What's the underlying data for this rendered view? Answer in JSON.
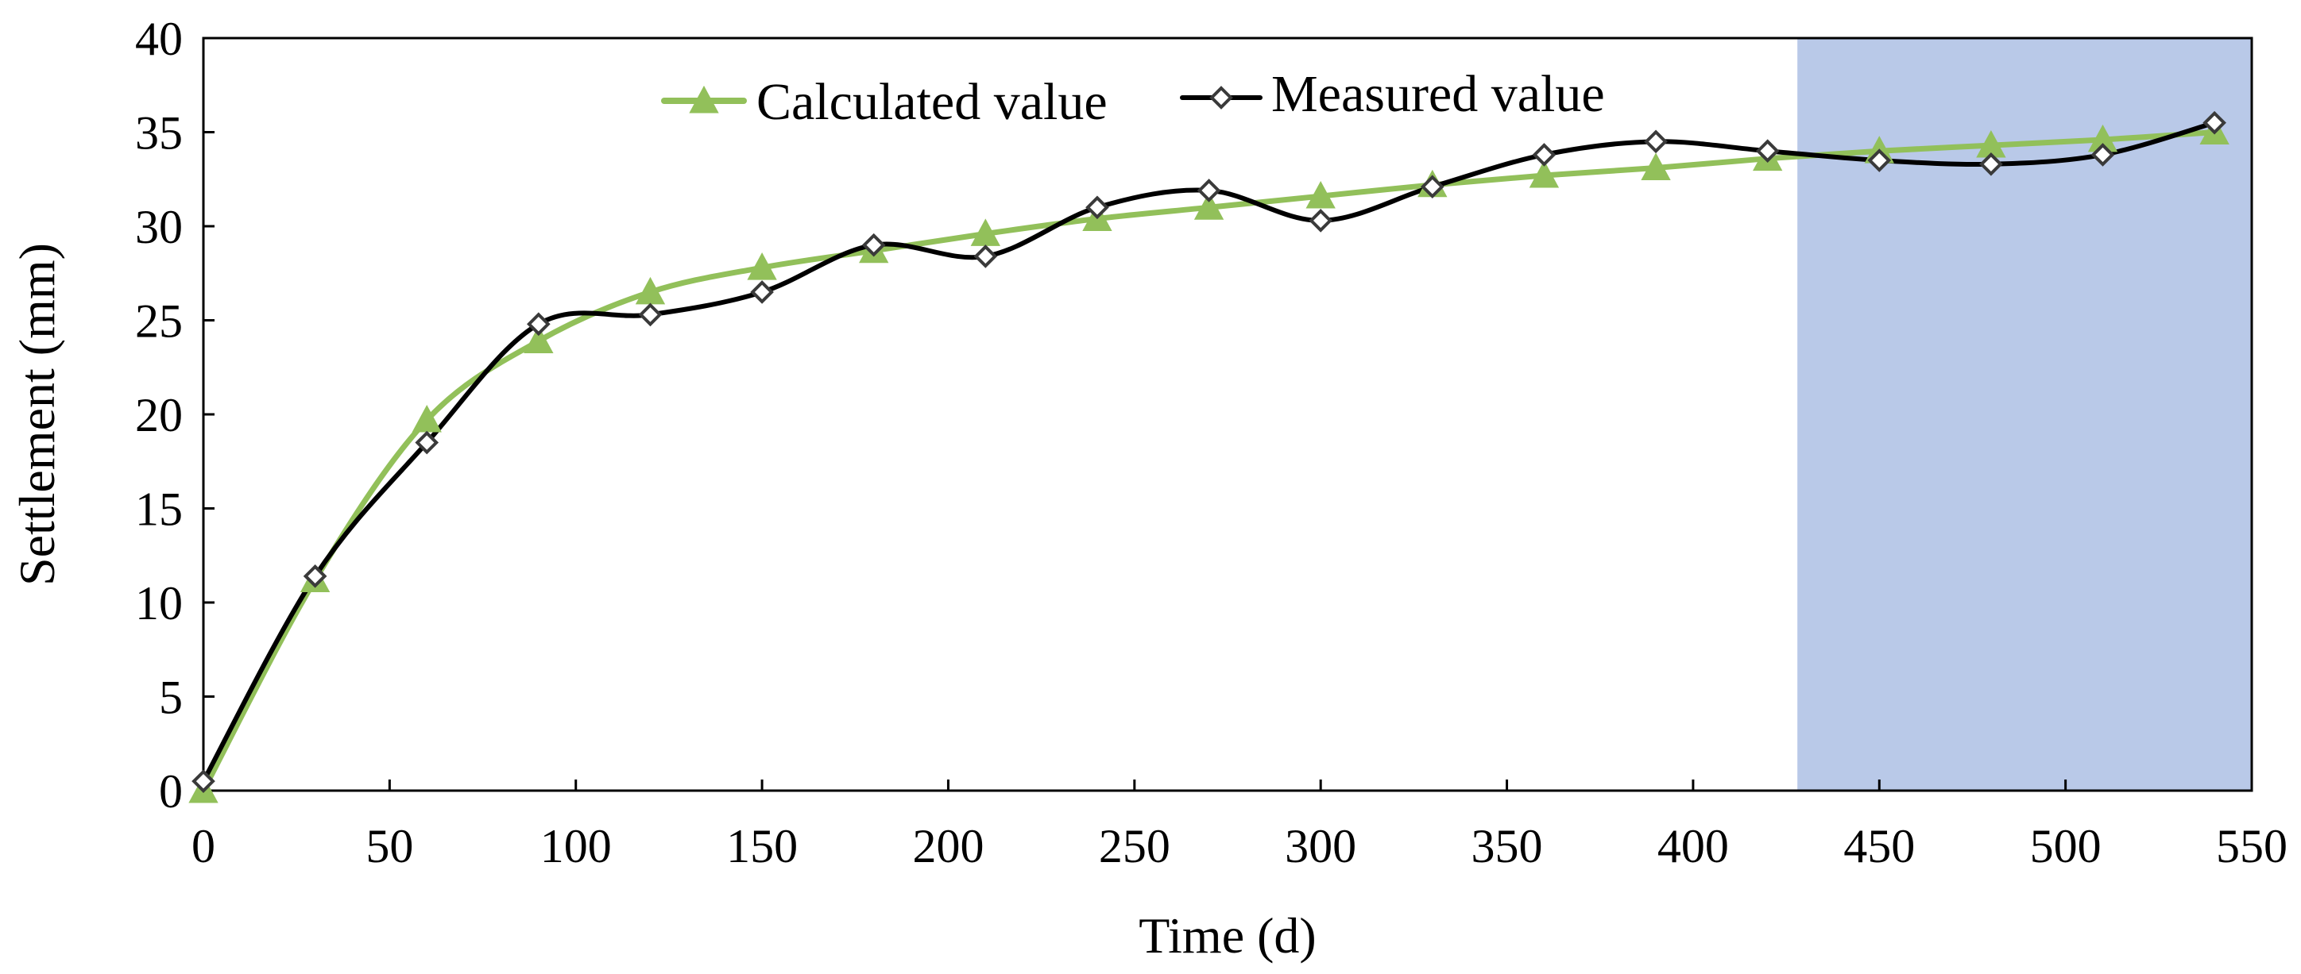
{
  "chart_data": {
    "type": "line",
    "title": "",
    "xlabel": "Time (d)",
    "ylabel": "Settlement (mm)",
    "xlim": [
      0,
      550
    ],
    "ylim": [
      0,
      40
    ],
    "xticks": [
      0,
      50,
      100,
      150,
      200,
      250,
      300,
      350,
      400,
      450,
      500,
      550
    ],
    "yticks": [
      0,
      5,
      10,
      15,
      20,
      25,
      30,
      35,
      40
    ],
    "grid": false,
    "legend_position": "top-center",
    "highlight_region": {
      "x_start": 428,
      "x_end": 550,
      "color": "#b9c9e8"
    },
    "series": [
      {
        "name": "Calculated value",
        "color": "#92c05a",
        "marker": "triangle",
        "x": [
          0,
          30,
          60,
          90,
          120,
          150,
          180,
          210,
          240,
          270,
          300,
          330,
          360,
          390,
          420,
          450,
          480,
          510,
          540
        ],
        "values": [
          0,
          11.2,
          19.7,
          23.9,
          26.5,
          27.8,
          28.7,
          29.6,
          30.4,
          31.0,
          31.6,
          32.2,
          32.7,
          33.1,
          33.6,
          34.0,
          34.3,
          34.6,
          35.0
        ]
      },
      {
        "name": "Measured value",
        "color": "#000000",
        "marker": "diamond",
        "x": [
          0,
          30,
          60,
          90,
          120,
          150,
          180,
          210,
          240,
          270,
          300,
          330,
          360,
          390,
          420,
          450,
          480,
          510,
          540
        ],
        "values": [
          0.5,
          11.4,
          18.5,
          24.8,
          25.3,
          26.5,
          29.0,
          28.4,
          31.0,
          31.9,
          30.3,
          32.1,
          33.8,
          34.5,
          34.0,
          33.5,
          33.3,
          33.8,
          35.5
        ]
      }
    ]
  }
}
